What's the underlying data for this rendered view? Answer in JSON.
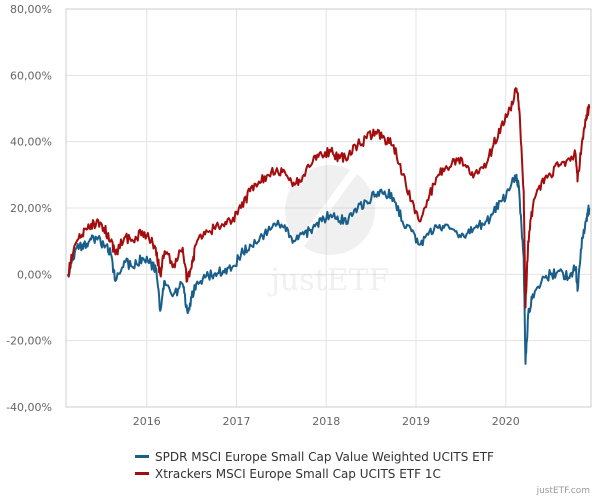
{
  "chart_data": {
    "type": "line",
    "title": "",
    "xlabel": "",
    "ylabel": "",
    "ylim": [
      -40,
      80
    ],
    "xlim": [
      2015.1,
      2020.95
    ],
    "yticks": [
      80,
      60,
      40,
      20,
      0,
      -20,
      -40
    ],
    "ytick_labels": [
      "80,00%",
      "60,00%",
      "40,00%",
      "20,00%",
      "0,00%",
      "-20,00%",
      "-40,00%"
    ],
    "xticks": [
      2016,
      2017,
      2018,
      2019,
      2020
    ],
    "xtick_labels": [
      "2016",
      "2017",
      "2018",
      "2019",
      "2020"
    ],
    "grid": true,
    "legend_position": "bottom",
    "watermark": "justETF",
    "series": [
      {
        "name": "SPDR MSCI Europe Small Cap Value Weighted UCITS ETF",
        "color": "#1a5f8a",
        "x": [
          2015.12,
          2015.2,
          2015.28,
          2015.36,
          2015.44,
          2015.52,
          2015.6,
          2015.65,
          2015.75,
          2015.85,
          2015.95,
          2016.05,
          2016.1,
          2016.15,
          2016.2,
          2016.3,
          2016.4,
          2016.45,
          2016.5,
          2016.55,
          2016.65,
          2016.75,
          2016.85,
          2016.95,
          2017.05,
          2017.15,
          2017.25,
          2017.35,
          2017.45,
          2017.55,
          2017.65,
          2017.75,
          2017.85,
          2017.95,
          2018.05,
          2018.15,
          2018.25,
          2018.35,
          2018.45,
          2018.55,
          2018.65,
          2018.75,
          2018.85,
          2018.95,
          2019.05,
          2019.15,
          2019.25,
          2019.35,
          2019.45,
          2019.55,
          2019.65,
          2019.75,
          2019.85,
          2019.95,
          2020.05,
          2020.12,
          2020.15,
          2020.2,
          2020.22,
          2020.25,
          2020.3,
          2020.4,
          2020.5,
          2020.6,
          2020.7,
          2020.78,
          2020.8,
          2020.85,
          2020.9,
          2020.93
        ],
        "y": [
          0,
          7,
          9,
          10,
          11,
          9,
          6,
          -2,
          4,
          2,
          5,
          3,
          2,
          -11,
          -2,
          -6,
          -3,
          -11,
          -7,
          -3,
          -1,
          0,
          1,
          2,
          6,
          9,
          10,
          13,
          15,
          13,
          10,
          12,
          14,
          16,
          18,
          16,
          17,
          20,
          22,
          24,
          25,
          23,
          16,
          13,
          9,
          13,
          14,
          15,
          13,
          11,
          14,
          15,
          18,
          22,
          26,
          30,
          25,
          5,
          -27,
          -12,
          -6,
          -2,
          0,
          1,
          -1,
          2,
          -5,
          11,
          17,
          20
        ]
      },
      {
        "name": "Xtrackers MSCI Europe Small Cap UCITS ETF 1C",
        "color": "#a30d0d",
        "x": [
          2015.12,
          2015.2,
          2015.28,
          2015.36,
          2015.44,
          2015.52,
          2015.6,
          2015.65,
          2015.75,
          2015.85,
          2015.95,
          2016.05,
          2016.1,
          2016.15,
          2016.2,
          2016.3,
          2016.4,
          2016.45,
          2016.5,
          2016.55,
          2016.65,
          2016.75,
          2016.85,
          2016.95,
          2017.05,
          2017.15,
          2017.25,
          2017.35,
          2017.45,
          2017.55,
          2017.65,
          2017.75,
          2017.85,
          2017.95,
          2018.05,
          2018.15,
          2018.25,
          2018.35,
          2018.45,
          2018.55,
          2018.65,
          2018.75,
          2018.85,
          2018.95,
          2019.05,
          2019.15,
          2019.25,
          2019.35,
          2019.45,
          2019.55,
          2019.65,
          2019.75,
          2019.85,
          2019.95,
          2020.05,
          2020.12,
          2020.15,
          2020.2,
          2020.22,
          2020.25,
          2020.3,
          2020.4,
          2020.5,
          2020.6,
          2020.7,
          2020.78,
          2020.8,
          2020.85,
          2020.9,
          2020.93
        ],
        "y": [
          0,
          9,
          12,
          14,
          16,
          14,
          10,
          6,
          11,
          10,
          13,
          10,
          8,
          0,
          7,
          3,
          8,
          -2,
          2,
          9,
          12,
          14,
          15,
          16,
          20,
          25,
          28,
          30,
          32,
          30,
          27,
          30,
          34,
          36,
          37,
          35,
          36,
          39,
          41,
          43,
          41,
          39,
          30,
          22,
          16,
          24,
          30,
          32,
          35,
          33,
          30,
          32,
          38,
          45,
          50,
          56,
          50,
          25,
          -10,
          10,
          20,
          28,
          30,
          33,
          35,
          36,
          28,
          40,
          48,
          50
        ]
      }
    ]
  },
  "credit": "justETF.com"
}
